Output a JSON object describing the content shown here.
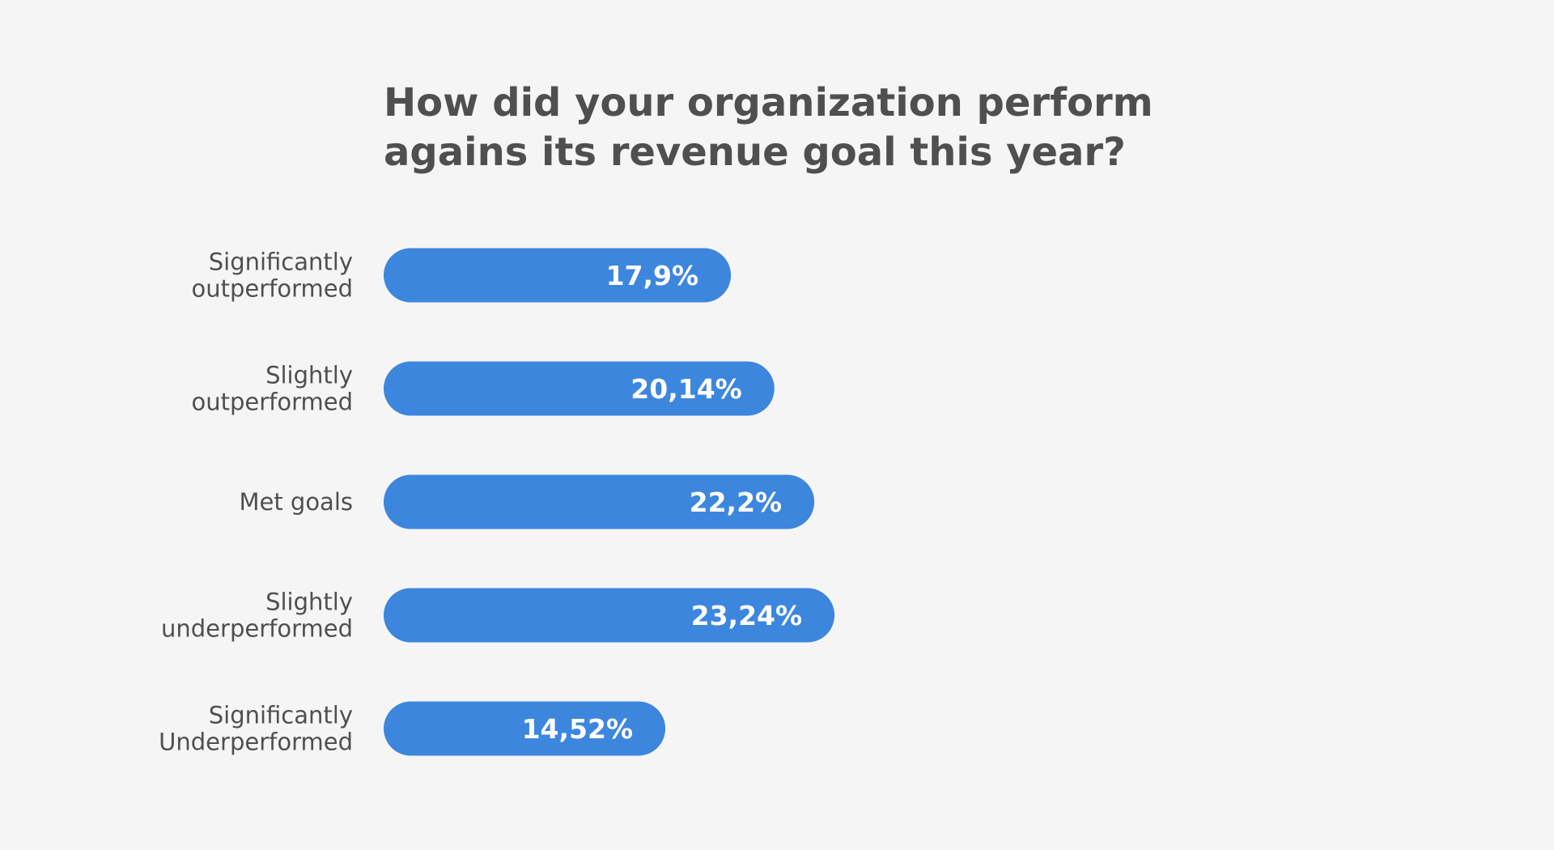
{
  "chart_data": {
    "type": "bar",
    "orientation": "horizontal",
    "title_lines": [
      "How did your organization perform",
      "agains its revenue goal this year?"
    ],
    "categories": [
      [
        "Significantly",
        "outperformed"
      ],
      [
        "Slightly",
        "outperformed"
      ],
      [
        "Met goals"
      ],
      [
        "Slightly",
        "underperformed"
      ],
      [
        "Significantly",
        "Underperformed"
      ]
    ],
    "values": [
      17.9,
      20.14,
      22.2,
      23.24,
      14.52
    ],
    "value_labels": [
      "17,9%",
      "20,14%",
      "22,2%",
      "23,24%",
      "14,52%"
    ],
    "xlim": [
      0,
      100
    ],
    "grid": false,
    "legend": "none",
    "bar_color": "#3d86dd",
    "text_color": "#4f4f4f",
    "value_label_color": "#ffffff",
    "background": "#f5f5f5"
  }
}
